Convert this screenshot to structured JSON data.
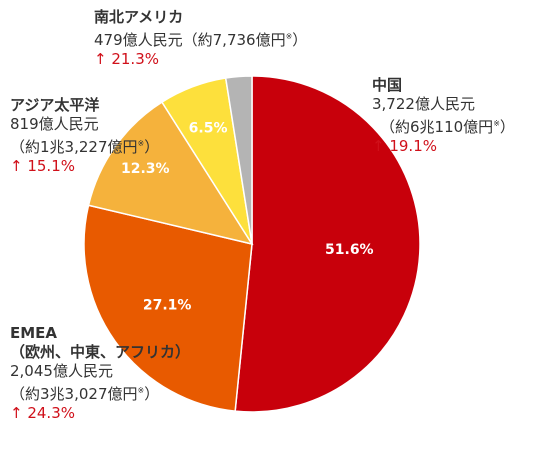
{
  "chart_data": {
    "type": "pie",
    "title": "",
    "start_angle_deg": 0,
    "direction": "clockwise",
    "slices": [
      {
        "key": "china",
        "value": 51.6,
        "label": "51.6%",
        "color": "#c8000b",
        "label_color": "#ffffff"
      },
      {
        "key": "emea",
        "value": 27.1,
        "label": "27.1%",
        "color": "#e85a00",
        "label_color": "#ffffff"
      },
      {
        "key": "apac",
        "value": 12.3,
        "label": "12.3%",
        "color": "#f5b23c",
        "label_color": "#ffffff"
      },
      {
        "key": "americas",
        "value": 6.5,
        "label": "6.5%",
        "color": "#fde03c",
        "label_color": "#ffffff"
      },
      {
        "key": "other",
        "value": 2.5,
        "label": "",
        "color": "#b4b4b4",
        "label_color": "#ffffff"
      }
    ]
  },
  "regions": {
    "china": {
      "name": "中国",
      "line1": "3,722億人民元",
      "line2": "（約6兆110億円",
      "mark": "※",
      "line2_end": "）",
      "growth": "↑ 19.1%"
    },
    "emea": {
      "name": "EMEA",
      "line1": "（欧州、中東、アフリカ）",
      "line2": "2,045億人民元",
      "line3": "（約3兆3,027億円",
      "mark": "※",
      "line3_end": "）",
      "growth": "↑ 24.3%"
    },
    "apac": {
      "name": "アジア太平洋",
      "line1": "819億人民元",
      "line2": "（約1兆3,227億円",
      "mark": "※",
      "line2_end": "）",
      "growth": "↑ 15.1%"
    },
    "americas": {
      "name": "南北アメリカ",
      "line1": "479億人民元（約7,736億円",
      "mark": "※",
      "line1_end": "）",
      "growth": "↑ 21.3%"
    }
  }
}
